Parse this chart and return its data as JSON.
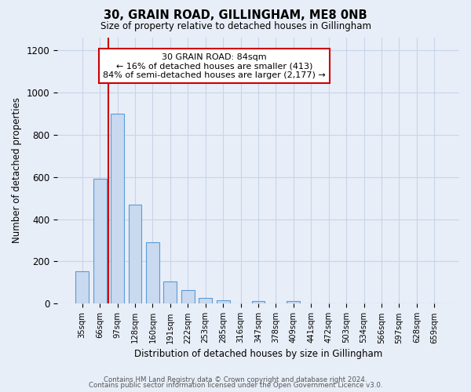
{
  "title": "30, GRAIN ROAD, GILLINGHAM, ME8 0NB",
  "subtitle": "Size of property relative to detached houses in Gillingham",
  "xlabel": "Distribution of detached houses by size in Gillingham",
  "ylabel": "Number of detached properties",
  "bar_labels": [
    "35sqm",
    "66sqm",
    "97sqm",
    "128sqm",
    "160sqm",
    "191sqm",
    "222sqm",
    "253sqm",
    "285sqm",
    "316sqm",
    "347sqm",
    "378sqm",
    "409sqm",
    "441sqm",
    "472sqm",
    "503sqm",
    "534sqm",
    "566sqm",
    "597sqm",
    "628sqm",
    "659sqm"
  ],
  "bar_values": [
    155,
    590,
    900,
    470,
    290,
    105,
    65,
    28,
    18,
    0,
    12,
    0,
    12,
    0,
    0,
    0,
    0,
    0,
    0,
    0,
    0
  ],
  "bar_color": "#c9d9ef",
  "bar_edge_color": "#5b9bd5",
  "vline_x_index": 2,
  "vline_color": "#cc0000",
  "annotation_line1": "30 GRAIN ROAD: 84sqm",
  "annotation_line2": "← 16% of detached houses are smaller (413)",
  "annotation_line3": "84% of semi-detached houses are larger (2,177) →",
  "annotation_box_color": "#ffffff",
  "annotation_box_edge": "#cc0000",
  "ylim": [
    0,
    1260
  ],
  "yticks": [
    0,
    200,
    400,
    600,
    800,
    1000,
    1200
  ],
  "grid_color": "#c8d4e8",
  "bg_color": "#e8eef8",
  "footer1": "Contains HM Land Registry data © Crown copyright and database right 2024.",
  "footer2": "Contains public sector information licensed under the Open Government Licence v3.0."
}
